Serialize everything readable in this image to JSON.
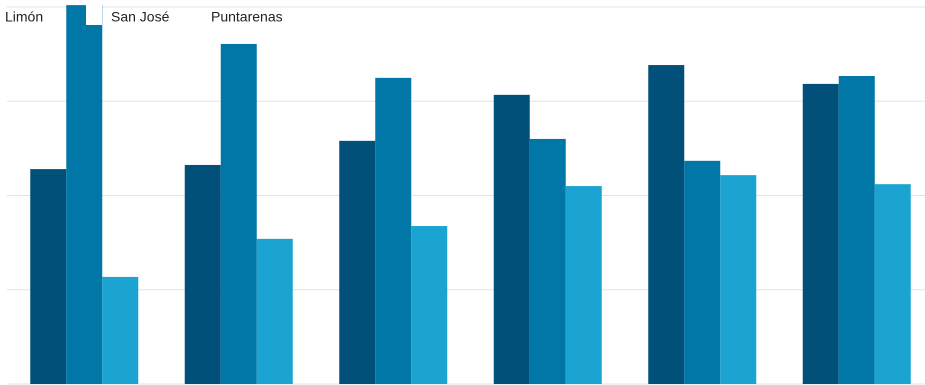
{
  "chart_data": {
    "type": "bar",
    "categories": [
      null,
      null,
      null,
      null,
      null,
      null
    ],
    "series": [
      {
        "name": "Limón",
        "color": "#00507a",
        "values": [
          57.0,
          58.1,
          64.5,
          76.7,
          84.6,
          79.6
        ]
      },
      {
        "name": "San José",
        "color": "#0077a6",
        "values": [
          100.5,
          90.2,
          81.2,
          65.0,
          59.2,
          81.7
        ]
      },
      {
        "name": "Puntarenas",
        "color": "#1ba3d1",
        "values": [
          28.4,
          38.5,
          41.9,
          52.5,
          55.4,
          53.0
        ]
      }
    ],
    "ylim": [
      0,
      100
    ],
    "yticks": [
      0,
      25,
      50,
      75,
      100
    ],
    "grid": true,
    "legend": "top-left"
  }
}
